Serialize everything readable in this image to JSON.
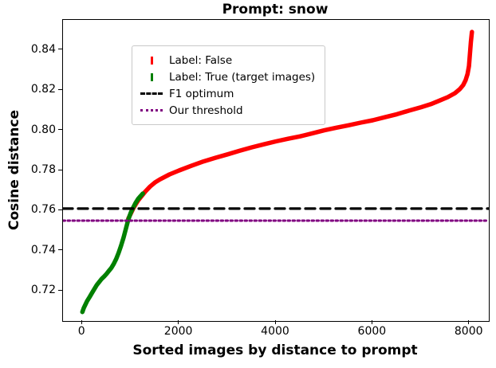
{
  "chart_data": {
    "type": "line",
    "title": "Prompt: snow",
    "xlabel": "Sorted images by distance to prompt",
    "ylabel": "Cosine distance",
    "xlim": [
      -400,
      8400
    ],
    "ylim": [
      0.705,
      0.855
    ],
    "xticks": [
      0,
      2000,
      4000,
      6000,
      8000
    ],
    "xtick_labels": [
      "0",
      "2000",
      "4000",
      "6000",
      "8000"
    ],
    "yticks": [
      0.72,
      0.74,
      0.76,
      0.78,
      0.8,
      0.82,
      0.84
    ],
    "ytick_labels": [
      "0.72",
      "0.74",
      "0.76",
      "0.78",
      "0.80",
      "0.82",
      "0.84"
    ],
    "grid": false,
    "legend_position": "upper left",
    "series": [
      {
        "name": "Label: False",
        "color": "#ff0000",
        "marker": "|",
        "points": [
          [
            950,
            0.756
          ],
          [
            1000,
            0.7585
          ],
          [
            1050,
            0.761
          ],
          [
            1100,
            0.763
          ],
          [
            1150,
            0.765
          ],
          [
            1200,
            0.7665
          ],
          [
            1300,
            0.7695
          ],
          [
            1400,
            0.772
          ],
          [
            1500,
            0.774
          ],
          [
            1600,
            0.7755
          ],
          [
            1800,
            0.778
          ],
          [
            2000,
            0.78
          ],
          [
            2250,
            0.7823
          ],
          [
            2500,
            0.7845
          ],
          [
            2750,
            0.7863
          ],
          [
            3000,
            0.788
          ],
          [
            3250,
            0.7898
          ],
          [
            3500,
            0.7915
          ],
          [
            3750,
            0.793
          ],
          [
            4000,
            0.7945
          ],
          [
            4250,
            0.7958
          ],
          [
            4500,
            0.797
          ],
          [
            4750,
            0.7985
          ],
          [
            5000,
            0.8
          ],
          [
            5250,
            0.8013
          ],
          [
            5500,
            0.8025
          ],
          [
            5750,
            0.8038
          ],
          [
            6000,
            0.805
          ],
          [
            6250,
            0.8065
          ],
          [
            6500,
            0.808
          ],
          [
            6750,
            0.8098
          ],
          [
            7000,
            0.8115
          ],
          [
            7200,
            0.813
          ],
          [
            7400,
            0.815
          ],
          [
            7550,
            0.8165
          ],
          [
            7700,
            0.8185
          ],
          [
            7800,
            0.8205
          ],
          [
            7870,
            0.8225
          ],
          [
            7920,
            0.825
          ],
          [
            7960,
            0.828
          ],
          [
            7990,
            0.832
          ],
          [
            8010,
            0.838
          ],
          [
            8030,
            0.844
          ],
          [
            8050,
            0.849
          ]
        ]
      },
      {
        "name": "Label: True (target images)",
        "color": "#008000",
        "marker": "|",
        "points": [
          [
            0,
            0.7095
          ],
          [
            30,
            0.7115
          ],
          [
            60,
            0.713
          ],
          [
            100,
            0.715
          ],
          [
            150,
            0.717
          ],
          [
            200,
            0.719
          ],
          [
            250,
            0.721
          ],
          [
            300,
            0.723
          ],
          [
            350,
            0.7245
          ],
          [
            400,
            0.726
          ],
          [
            450,
            0.7272
          ],
          [
            500,
            0.7285
          ],
          [
            550,
            0.73
          ],
          [
            600,
            0.7315
          ],
          [
            650,
            0.7335
          ],
          [
            700,
            0.736
          ],
          [
            750,
            0.739
          ],
          [
            800,
            0.7425
          ],
          [
            850,
            0.7465
          ],
          [
            900,
            0.751
          ],
          [
            950,
            0.7555
          ],
          [
            1000,
            0.759
          ],
          [
            1050,
            0.7615
          ],
          [
            1100,
            0.7638
          ],
          [
            1150,
            0.7658
          ],
          [
            1200,
            0.7672
          ],
          [
            1250,
            0.7685
          ]
        ]
      }
    ],
    "thresholds": [
      {
        "name": "F1 optimum",
        "color": "#000000",
        "style": "dashed",
        "y": 0.761
      },
      {
        "name": "Our threshold",
        "color": "#800080",
        "style": "dotted",
        "y": 0.755
      }
    ]
  }
}
